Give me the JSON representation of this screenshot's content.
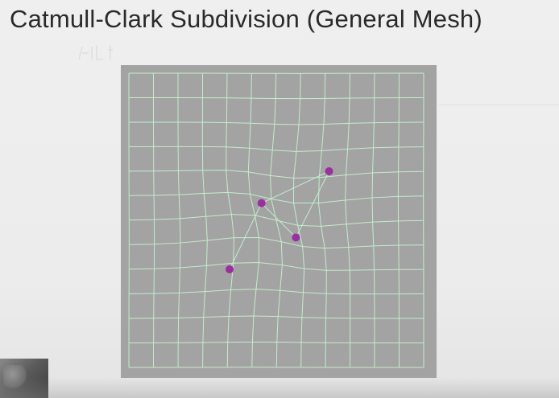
{
  "slide": {
    "title": "Catmull-Clark Subdivision (General Mesh)"
  },
  "mesh": {
    "background_color": "#a3a3a3",
    "grid_line_color": "#c4eccb",
    "vertex_color": "#9b2fa0",
    "grid_rows": 12,
    "grid_cols": 12,
    "extraordinary_vertex_count": 4
  }
}
